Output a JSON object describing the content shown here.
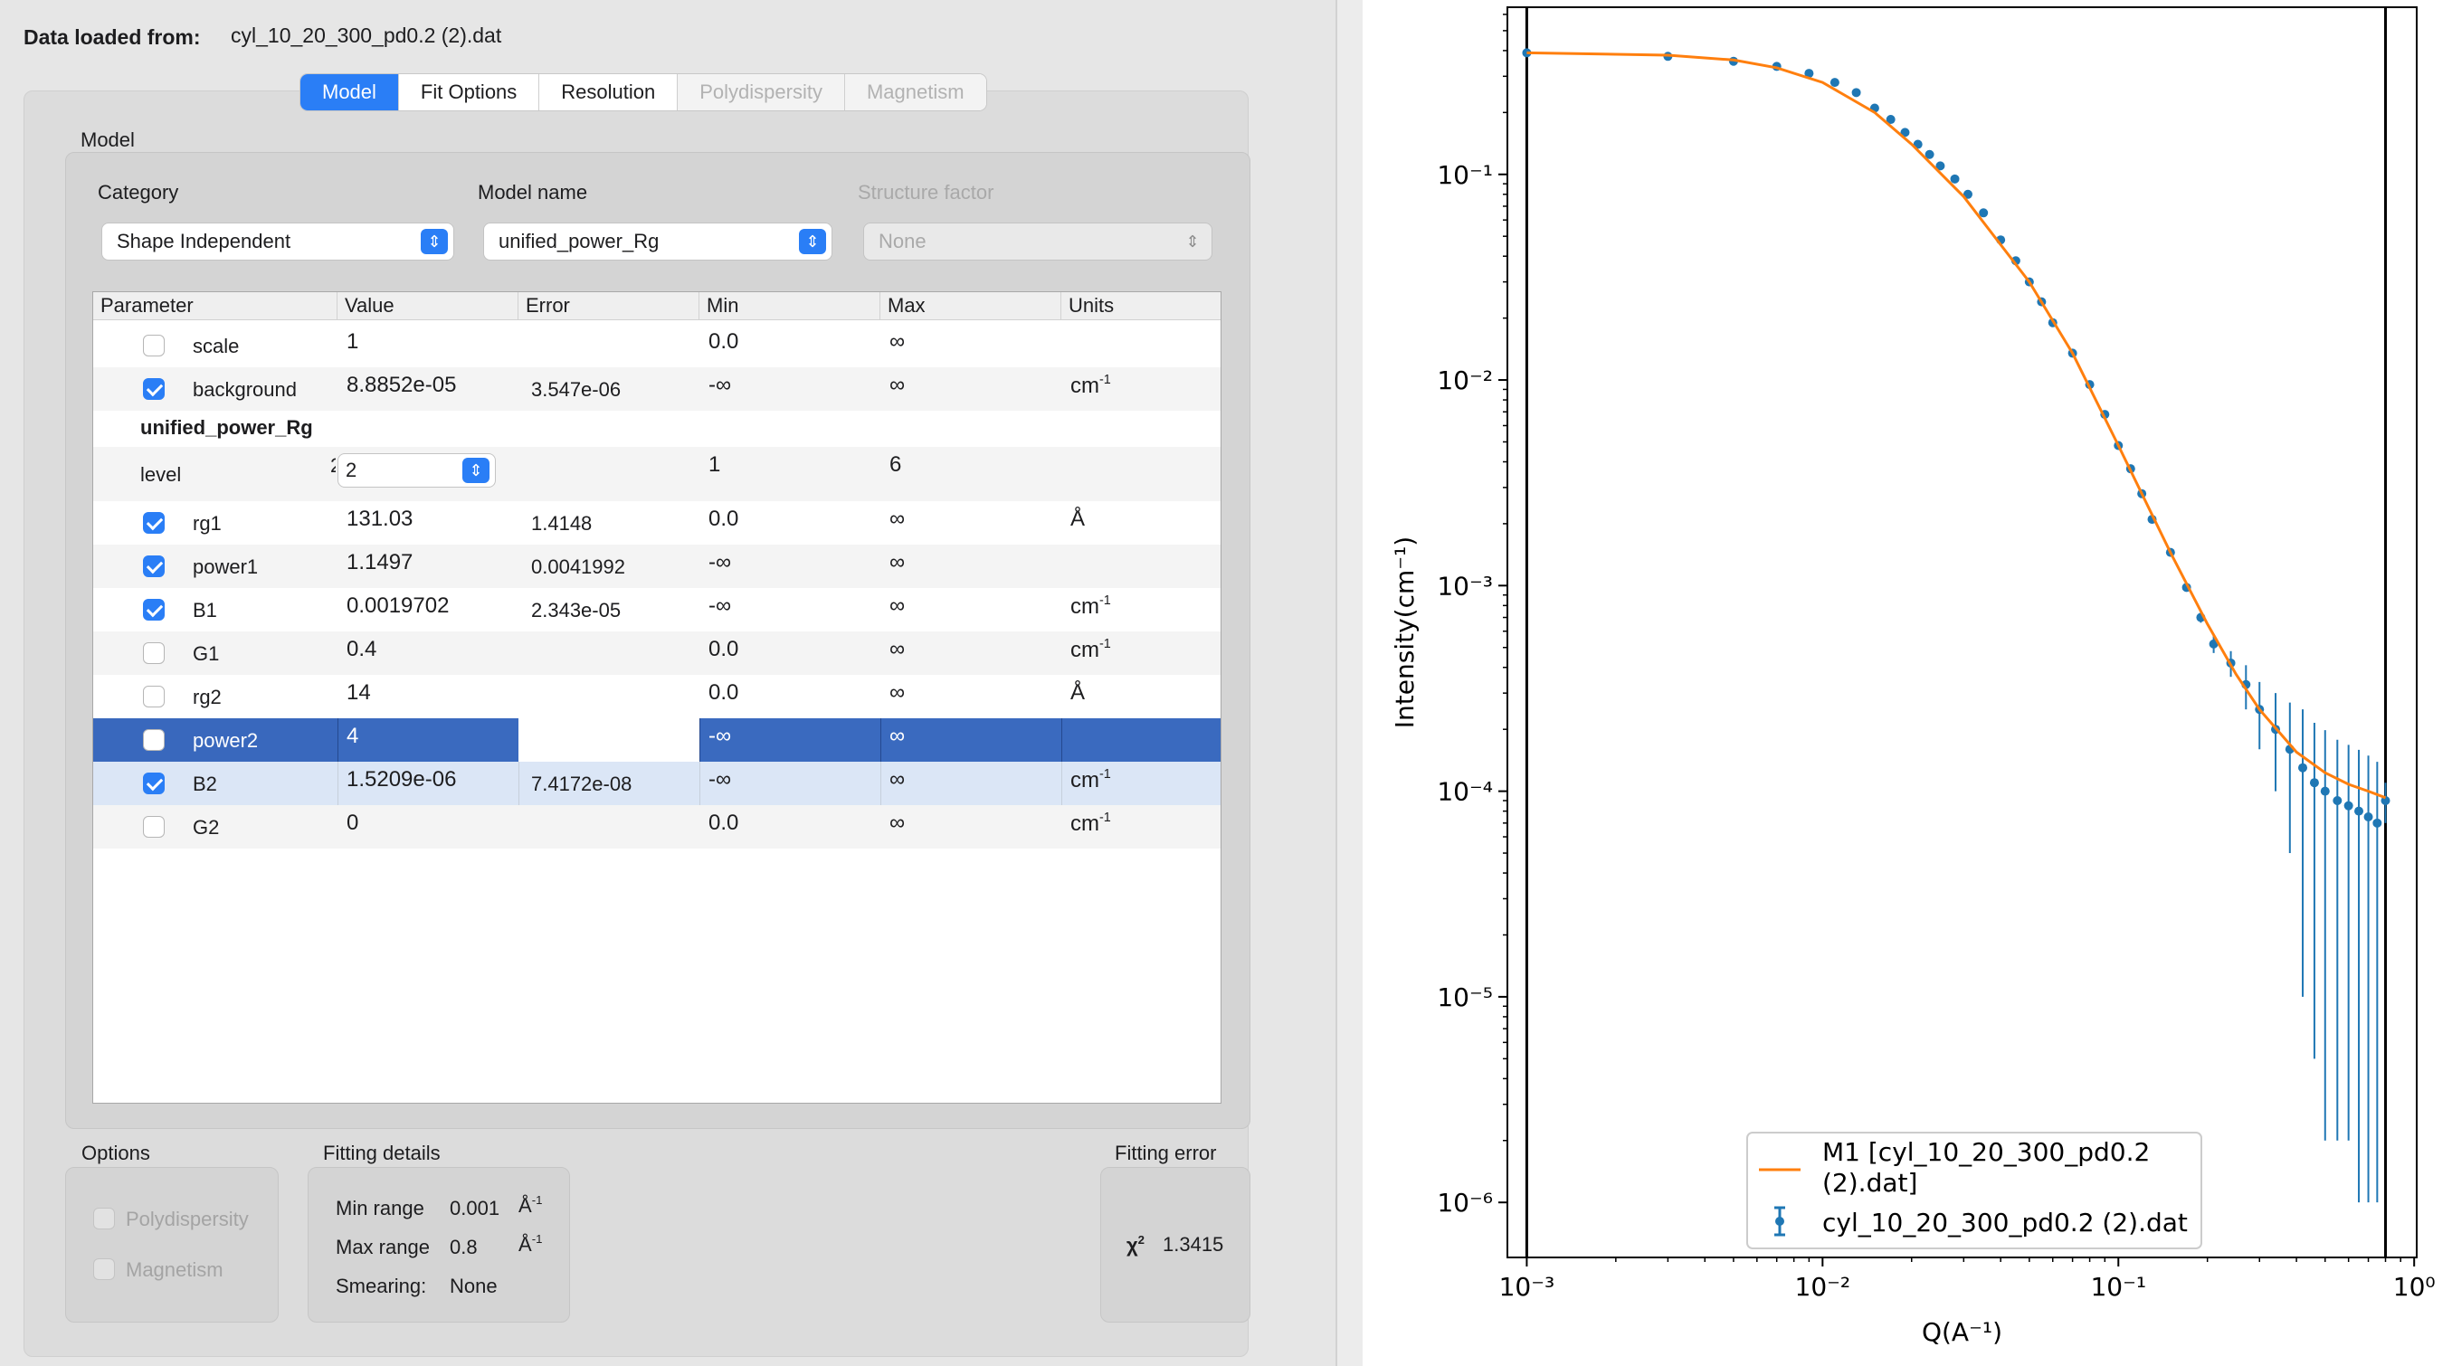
{
  "header": {
    "label": "Data loaded from:",
    "filename": "cyl_10_20_300_pd0.2 (2).dat"
  },
  "tabs": [
    {
      "label": "Model",
      "state": "active"
    },
    {
      "label": "Fit Options",
      "state": "normal"
    },
    {
      "label": "Resolution",
      "state": "normal"
    },
    {
      "label": "Polydispersity",
      "state": "disabled"
    },
    {
      "label": "Magnetism",
      "state": "disabled"
    }
  ],
  "model": {
    "group_label": "Model",
    "category": {
      "label": "Category",
      "value": "Shape Independent"
    },
    "model_name": {
      "label": "Model name",
      "value": "unified_power_Rg"
    },
    "structure_factor": {
      "label": "Structure factor",
      "value": "None"
    }
  },
  "table": {
    "headers": [
      "Parameter",
      "Value",
      "Error",
      "Min",
      "Max",
      "Units"
    ],
    "rows": [
      {
        "name": "scale",
        "checked": false,
        "value": "1",
        "error": "",
        "min": "0.0",
        "max": "∞",
        "units": "",
        "units_sup": ""
      },
      {
        "name": "background",
        "checked": true,
        "value": "8.8852e-05",
        "error": "3.547e-06",
        "min": "-∞",
        "max": "∞",
        "units": "cm",
        "units_sup": "-1"
      },
      {
        "name": "rg1",
        "checked": true,
        "value": "131.03",
        "error": "1.4148",
        "min": "0.0",
        "max": "∞",
        "units": "Å",
        "units_sup": ""
      },
      {
        "name": "power1",
        "checked": true,
        "value": "1.1497",
        "error": "0.0041992",
        "min": "-∞",
        "max": "∞",
        "units": "",
        "units_sup": ""
      },
      {
        "name": "B1",
        "checked": true,
        "value": "0.0019702",
        "error": "2.343e-05",
        "min": "-∞",
        "max": "∞",
        "units": "cm",
        "units_sup": "-1"
      },
      {
        "name": "G1",
        "checked": false,
        "value": "0.4",
        "error": "",
        "min": "0.0",
        "max": "∞",
        "units": "cm",
        "units_sup": "-1"
      },
      {
        "name": "rg2",
        "checked": false,
        "value": "14",
        "error": "",
        "min": "0.0",
        "max": "∞",
        "units": "Å",
        "units_sup": ""
      },
      {
        "name": "power2",
        "checked": false,
        "value": "4",
        "error": "",
        "min": "-∞",
        "max": "∞",
        "units": "",
        "units_sup": ""
      },
      {
        "name": "B2",
        "checked": true,
        "value": "1.5209e-06",
        "error": "7.4172e-08",
        "min": "-∞",
        "max": "∞",
        "units": "cm",
        "units_sup": "-1"
      },
      {
        "name": "G2",
        "checked": false,
        "value": "0",
        "error": "",
        "min": "0.0",
        "max": "∞",
        "units": "cm",
        "units_sup": "-1"
      }
    ],
    "section_label": "unified_power_Rg",
    "level": {
      "label": "level",
      "spin_value": "2",
      "clipped_value": "2",
      "min": "1",
      "max": "6"
    }
  },
  "options": {
    "label": "Options",
    "polydispersity": "Polydispersity",
    "magnetism": "Magnetism"
  },
  "fitting_details": {
    "label": "Fitting details",
    "min_range_label": "Min range",
    "min_range_value": "0.001",
    "max_range_label": "Max range",
    "max_range_value": "0.8",
    "range_unit": "Å",
    "range_unit_sup": "-1",
    "smearing_label": "Smearing:",
    "smearing_value": "None"
  },
  "fitting_error": {
    "label": "Fitting error",
    "chi_label": "χ",
    "chi_sup": "2",
    "chi_value": "1.3415"
  },
  "chart_data": {
    "type": "line",
    "xlabel": "Q(A⁻¹)",
    "ylabel": "Intensity(cm⁻¹)",
    "x_scale": "log",
    "y_scale": "log",
    "xlim": [
      0.00086,
      1.02
    ],
    "ylim": [
      5.4e-07,
      0.65
    ],
    "x_ticks": [
      "10⁻³",
      "10⁻²",
      "10⁻¹",
      "10⁰"
    ],
    "y_ticks": [
      "10⁻⁶",
      "10⁻⁵",
      "10⁻⁴",
      "10⁻³",
      "10⁻²",
      "10⁻¹"
    ],
    "range_markers": [
      0.001,
      0.8
    ],
    "legend": {
      "position": "lower-right",
      "entries": [
        "M1 [cyl_10_20_300_pd0.2 (2).dat]",
        "cyl_10_20_300_pd0.2 (2).dat"
      ]
    },
    "colors": {
      "model": "#ff7f0e",
      "data": "#1f77b4"
    },
    "series": [
      {
        "name": "M1 [cyl_10_20_300_pd0.2 (2).dat]",
        "kind": "line",
        "x": [
          0.001,
          0.003,
          0.005,
          0.007,
          0.01,
          0.015,
          0.02,
          0.03,
          0.05,
          0.07,
          0.1,
          0.15,
          0.2,
          0.25,
          0.3,
          0.4,
          0.5,
          0.6,
          0.7,
          0.8
        ],
        "y": [
          0.39,
          0.38,
          0.36,
          0.33,
          0.28,
          0.2,
          0.14,
          0.078,
          0.03,
          0.0135,
          0.0048,
          0.00145,
          0.00065,
          0.00037,
          0.00025,
          0.000155,
          0.000123,
          0.000108,
          0.0001,
          9.3e-05
        ]
      },
      {
        "name": "cyl_10_20_300_pd0.2 (2).dat",
        "kind": "errorbar",
        "x": [
          0.001,
          0.003,
          0.005,
          0.007,
          0.009,
          0.011,
          0.013,
          0.015,
          0.017,
          0.019,
          0.021,
          0.023,
          0.025,
          0.028,
          0.031,
          0.035,
          0.04,
          0.045,
          0.05,
          0.055,
          0.06,
          0.07,
          0.08,
          0.09,
          0.1,
          0.11,
          0.12,
          0.13,
          0.15,
          0.17,
          0.19,
          0.21,
          0.24,
          0.27,
          0.3,
          0.34,
          0.38,
          0.42,
          0.46,
          0.5,
          0.55,
          0.6,
          0.65,
          0.7,
          0.75,
          0.8
        ],
        "y": [
          0.39,
          0.375,
          0.355,
          0.335,
          0.31,
          0.28,
          0.25,
          0.21,
          0.185,
          0.16,
          0.14,
          0.125,
          0.11,
          0.095,
          0.08,
          0.065,
          0.048,
          0.038,
          0.03,
          0.024,
          0.019,
          0.0135,
          0.0095,
          0.0068,
          0.0048,
          0.0037,
          0.0028,
          0.0021,
          0.00145,
          0.00098,
          0.0007,
          0.00052,
          0.00042,
          0.00033,
          0.00025,
          0.0002,
          0.00016,
          0.00013,
          0.00011,
          0.0001,
          9e-05,
          8.5e-05,
          8e-05,
          7.5e-05,
          7e-05,
          9e-05
        ],
        "err": [
          0.01,
          0.008,
          0.006,
          0.005,
          0.004,
          0.004,
          0.003,
          0.003,
          0.003,
          0.002,
          0.002,
          0.002,
          0.002,
          0.0015,
          0.0012,
          0.001,
          0.0008,
          0.0006,
          0.0005,
          0.0004,
          0.0003,
          0.0002,
          0.00015,
          0.0001,
          8e-05,
          7e-05,
          6e-05,
          5e-05,
          4e-05,
          4e-05,
          4e-05,
          5e-05,
          6e-05,
          8e-05,
          9e-05,
          0.0001,
          0.00011,
          0.00012,
          0.000105,
          9.8e-05,
          8.8e-05,
          8.3e-05,
          7.9e-05,
          7.4e-05,
          6.9e-05,
          2e-05
        ]
      }
    ]
  }
}
